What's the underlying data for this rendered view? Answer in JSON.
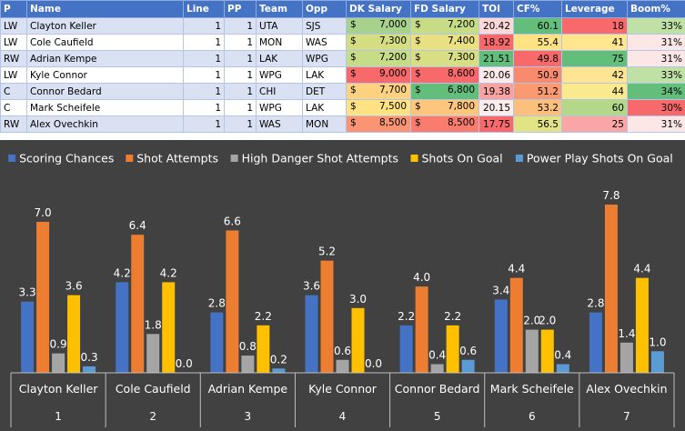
{
  "table": {
    "headers": [
      "P",
      "Name",
      "Line",
      "PP",
      "Team",
      "Opp",
      "DK Salary",
      "FD Salary",
      "TOI",
      "CF%",
      "Leverage",
      "Boom%"
    ],
    "currency": "$",
    "rows": [
      {
        "p": "LW",
        "name": "Clayton Keller",
        "line": 1,
        "pp": 1,
        "team": "UTA",
        "opp": "SJS",
        "dk": "7,000",
        "fd": "7,200",
        "toi": "20.42",
        "cf": "60.1",
        "lev": 18,
        "boom": "33%",
        "colors": {
          "dk": "#a9d18e",
          "fd": "#c6dc86",
          "toi": "#fcd8d8",
          "cf": "#63be7b",
          "lev": "#f8696b",
          "boom": "#bfe1a6"
        }
      },
      {
        "p": "LW",
        "name": "Cole Caufield",
        "line": 1,
        "pp": 1,
        "team": "MON",
        "opp": "WAS",
        "dk": "7,300",
        "fd": "7,400",
        "toi": "18.92",
        "cf": "55.4",
        "lev": 41,
        "boom": "31%",
        "colors": {
          "dk": "#d4dd82",
          "fd": "#e8e083",
          "toi": "#f8696b",
          "cf": "#ffe284",
          "lev": "#ffe68f",
          "boom": "#fde6e6"
        }
      },
      {
        "p": "RW",
        "name": "Adrian Kempe",
        "line": 1,
        "pp": 1,
        "team": "LAK",
        "opp": "WPG",
        "dk": "7,200",
        "fd": "7,300",
        "toi": "21.51",
        "cf": "49.8",
        "lev": 75,
        "boom": "31%",
        "colors": {
          "dk": "#c6dc86",
          "fd": "#d8de83",
          "toi": "#63be7b",
          "cf": "#f8696b",
          "lev": "#63be7b",
          "boom": "#fde6e6"
        }
      },
      {
        "p": "LW",
        "name": "Kyle Connor",
        "line": 1,
        "pp": 1,
        "team": "WPG",
        "opp": "LAK",
        "dk": "9,000",
        "fd": "8,600",
        "toi": "20.06",
        "cf": "50.9",
        "lev": 42,
        "boom": "33%",
        "colors": {
          "dk": "#f8696b",
          "fd": "#f8696b",
          "toi": "#fde9e9",
          "cf": "#f98a6e",
          "lev": "#fee593",
          "boom": "#bfe1a6"
        }
      },
      {
        "p": "C",
        "name": "Connor Bedard",
        "line": 1,
        "pp": 1,
        "team": "CHI",
        "opp": "DET",
        "dk": "7,700",
        "fd": "6,800",
        "toi": "19.38",
        "cf": "51.2",
        "lev": 44,
        "boom": "34%",
        "colors": {
          "dk": "#fed280",
          "fd": "#63be7b",
          "toi": "#f9a2a2",
          "cf": "#fb9a70",
          "lev": "#f9e98f",
          "boom": "#63be7b"
        }
      },
      {
        "p": "C",
        "name": "Mark Scheifele",
        "line": 1,
        "pp": 1,
        "team": "WPG",
        "opp": "LAK",
        "dk": "7,500",
        "fd": "7,800",
        "toi": "20.15",
        "cf": "53.2",
        "lev": 60,
        "boom": "30%",
        "colors": {
          "dk": "#fee283",
          "fd": "#fdc67c",
          "toi": "#fdecec",
          "cf": "#fdc07c",
          "lev": "#b3d88a",
          "boom": "#f8696b"
        }
      },
      {
        "p": "RW",
        "name": "Alex Ovechkin",
        "line": 1,
        "pp": 1,
        "team": "WAS",
        "opp": "MON",
        "dk": "8,500",
        "fd": "8,500",
        "toi": "17.75",
        "cf": "56.5",
        "lev": 25,
        "boom": "31%",
        "colors": {
          "dk": "#fa9473",
          "fd": "#f97c6e",
          "toi": "#f8696b",
          "cf": "#e2e384",
          "lev": "#faa6a6",
          "boom": "#fde6e6"
        }
      }
    ]
  },
  "chart_data": {
    "type": "bar",
    "background": "#414141",
    "legend_position": "top",
    "categories": [
      "Clayton Keller",
      "Cole Caufield",
      "Adrian Kempe",
      "Kyle Connor",
      "Connor Bedard",
      "Mark Scheifele",
      "Alex Ovechkin"
    ],
    "category_index": [
      "1",
      "2",
      "3",
      "4",
      "5",
      "6",
      "7"
    ],
    "series": [
      {
        "name": "Scoring Chances",
        "color": "#4472c4",
        "values": [
          3.3,
          4.2,
          2.8,
          3.6,
          2.2,
          3.4,
          2.8
        ]
      },
      {
        "name": "Shot Attempts",
        "color": "#ed7d31",
        "values": [
          7.0,
          6.4,
          6.6,
          5.2,
          4.0,
          4.4,
          7.8
        ]
      },
      {
        "name": "High Danger Shot Attempts",
        "color": "#a5a5a5",
        "values": [
          0.9,
          1.8,
          0.8,
          0.6,
          0.4,
          2.0,
          1.4
        ]
      },
      {
        "name": "Shots On Goal",
        "color": "#ffc000",
        "values": [
          3.6,
          4.2,
          2.2,
          3.0,
          2.2,
          2.0,
          4.4
        ]
      },
      {
        "name": "Power Play Shots On Goal",
        "color": "#5b9bd5",
        "values": [
          0.3,
          0.0,
          0.2,
          0.0,
          0.6,
          0.4,
          1.0
        ]
      }
    ],
    "ylim": [
      0,
      8.6
    ],
    "grid": false,
    "title": "",
    "xlabel": "",
    "ylabel": ""
  }
}
